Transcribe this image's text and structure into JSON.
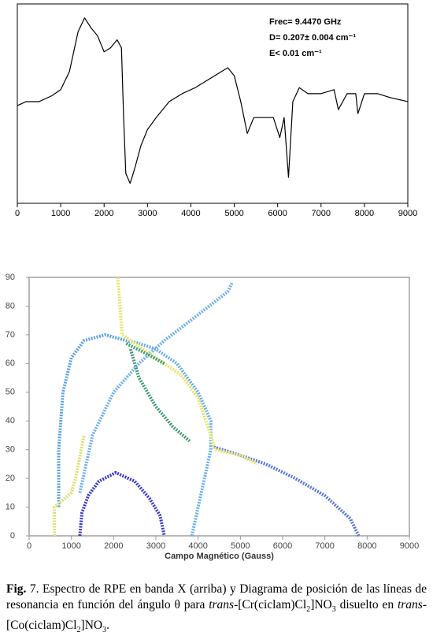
{
  "chart_data": [
    {
      "type": "line",
      "color": "#000000",
      "x": [
        0,
        200,
        500,
        800,
        1000,
        1200,
        1400,
        1550,
        1700,
        1850,
        2000,
        2150,
        2300,
        2400,
        2450,
        2500,
        2600,
        2700,
        2850,
        3000,
        3200,
        3500,
        3800,
        4100,
        4400,
        4700,
        4850,
        5000,
        5150,
        5300,
        5450,
        5700,
        5900,
        6050,
        6150,
        6250,
        6350,
        6500,
        6700,
        7000,
        7300,
        7400,
        7600,
        7800,
        7850,
        8000,
        8300,
        8600,
        9000
      ],
      "values": [
        49,
        51,
        51,
        54,
        57,
        66,
        86,
        93,
        88,
        84,
        76,
        78,
        82,
        78,
        43,
        15,
        10,
        17,
        29,
        37,
        43,
        51,
        55,
        58,
        62,
        66,
        68,
        64,
        51,
        35,
        43,
        43,
        43,
        33,
        43,
        13,
        51,
        58,
        55,
        55,
        57,
        47,
        55,
        55,
        45,
        55,
        55,
        53,
        51
      ],
      "xlim": [
        0,
        9000
      ],
      "ylim": [
        0,
        100
      ],
      "xticks": [
        0,
        1000,
        2000,
        3000,
        4000,
        5000,
        6000,
        7000,
        8000,
        9000
      ],
      "annotations": [
        "Frec= 9.4470 GHz",
        "D= 0.207± 0.004 cm⁻¹",
        "E< 0.01 cm⁻¹"
      ]
    },
    {
      "type": "line",
      "line_style": "dotted",
      "x_label": "Campo Magnético (Gauss)",
      "xlim": [
        0,
        9000
      ],
      "ylim": [
        0,
        90
      ],
      "xticks": [
        0,
        1000,
        2000,
        3000,
        4000,
        5000,
        6000,
        7000,
        8000,
        9000
      ],
      "yticks": [
        0,
        10,
        20,
        30,
        40,
        50,
        60,
        70,
        80,
        90
      ],
      "series": [
        {
          "color": "#3a3ac0",
          "x": [
            1200,
            1250,
            1400,
            1650,
            2050,
            2500,
            2850,
            3100,
            3200
          ],
          "values": [
            0,
            8,
            14,
            19,
            22,
            19,
            13,
            7,
            0
          ]
        },
        {
          "color": "#5a78d8",
          "x": [
            7800,
            7600,
            7000,
            6300,
            5600,
            4800,
            4350
          ],
          "values": [
            0,
            6,
            14,
            20,
            25,
            29,
            31
          ]
        },
        {
          "color": "#5aa0e6",
          "x": [
            700,
            700,
            800,
            1000,
            1300,
            1800,
            2300,
            2600
          ],
          "values": [
            10,
            30,
            50,
            62,
            68,
            70,
            68,
            67
          ]
        },
        {
          "color": "#6aaee8",
          "x": [
            3850,
            4300,
            4300,
            4000,
            3500,
            3000,
            2600
          ],
          "values": [
            0,
            30,
            40,
            50,
            60,
            65,
            67
          ]
        },
        {
          "color": "#70b0ea",
          "x": [
            1200,
            1500,
            2000,
            2600,
            3200,
            4000,
            4700,
            4800
          ],
          "values": [
            15,
            35,
            50,
            60,
            68,
            77,
            85,
            88
          ]
        },
        {
          "color": "#e6e66a",
          "x": [
            2100,
            2200,
            3000,
            3600,
            4000,
            4300,
            4400,
            5000,
            5400
          ],
          "values": [
            90,
            70,
            62,
            56,
            48,
            35,
            30,
            28,
            25
          ]
        },
        {
          "color": "#dede70",
          "x": [
            600,
            600,
            1000,
            1100,
            1300
          ],
          "values": [
            0,
            10,
            15,
            20,
            35
          ]
        },
        {
          "color": "#3f9a70",
          "x": [
            2300,
            2700,
            3200
          ],
          "values": [
            67,
            64,
            60
          ]
        },
        {
          "color": "#3f9a70",
          "x": [
            2400,
            2600,
            3000,
            3400,
            3800
          ],
          "values": [
            65,
            55,
            45,
            38,
            33
          ]
        }
      ]
    }
  ],
  "caption": {
    "segments": [
      {
        "text": "Fig.",
        "style": "bold"
      },
      {
        "text": " 7.",
        "style": "normal"
      },
      {
        "text": " Espectro de RPE en banda X (arriba) y Diagrama de posición de las líneas de resonancia en función del ángulo θ para ",
        "style": "normal"
      },
      {
        "text": "trans",
        "style": "italic"
      },
      {
        "text": "-[Cr(ciclam)Cl",
        "style": "normal"
      },
      {
        "text": "2",
        "style": "sub"
      },
      {
        "text": "]NO",
        "style": "normal"
      },
      {
        "text": "3",
        "style": "sub"
      },
      {
        "text": " disuelto en ",
        "style": "normal"
      },
      {
        "text": "trans",
        "style": "italic"
      },
      {
        "text": "-[Co(ciclam)Cl",
        "style": "normal"
      },
      {
        "text": "2",
        "style": "sub"
      },
      {
        "text": "]NO",
        "style": "normal"
      },
      {
        "text": "3",
        "style": "sub"
      },
      {
        "text": ".",
        "style": "normal"
      }
    ]
  }
}
